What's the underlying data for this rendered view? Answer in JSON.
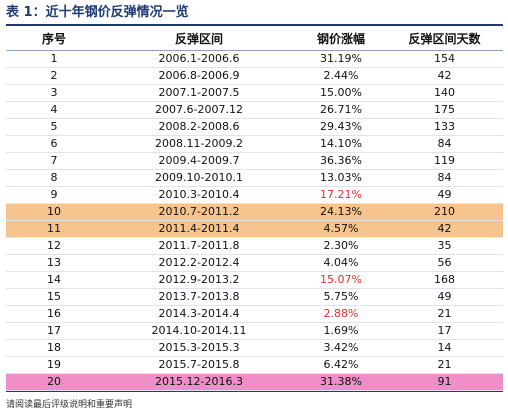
{
  "title": "表 1：近十年钢价反弹情况一览",
  "table": {
    "headers": [
      "序号",
      "反弹区间",
      "钢价涨幅",
      "反弹区间天数"
    ],
    "rows": [
      {
        "no": "1",
        "period": "2006.1-2006.6",
        "rise": "31.19%",
        "days": "154",
        "highlight": "",
        "rise_color": ""
      },
      {
        "no": "2",
        "period": "2006.8-2006.9",
        "rise": "2.44%",
        "days": "42",
        "highlight": "",
        "rise_color": ""
      },
      {
        "no": "3",
        "period": "2007.1-2007.5",
        "rise": "15.00%",
        "days": "140",
        "highlight": "",
        "rise_color": ""
      },
      {
        "no": "4",
        "period": "2007.6-2007.12",
        "rise": "26.71%",
        "days": "175",
        "highlight": "",
        "rise_color": ""
      },
      {
        "no": "5",
        "period": "2008.2-2008.6",
        "rise": "29.43%",
        "days": "133",
        "highlight": "",
        "rise_color": ""
      },
      {
        "no": "6",
        "period": "2008.11-2009.2",
        "rise": "14.10%",
        "days": "84",
        "highlight": "",
        "rise_color": ""
      },
      {
        "no": "7",
        "period": "2009.4-2009.7",
        "rise": "36.36%",
        "days": "119",
        "highlight": "",
        "rise_color": ""
      },
      {
        "no": "8",
        "period": "2009.10-2010.1",
        "rise": "13.03%",
        "days": "84",
        "highlight": "",
        "rise_color": ""
      },
      {
        "no": "9",
        "period": "2010.3-2010.4",
        "rise": "17.21%",
        "days": "49",
        "highlight": "",
        "rise_color": "red"
      },
      {
        "no": "10",
        "period": "2010.7-2011.2",
        "rise": "24.13%",
        "days": "210",
        "highlight": "orange",
        "rise_color": ""
      },
      {
        "no": "11",
        "period": "2011.4-2011.4",
        "rise": "4.57%",
        "days": "42",
        "highlight": "orange",
        "rise_color": ""
      },
      {
        "no": "12",
        "period": "2011.7-2011.8",
        "rise": "2.30%",
        "days": "35",
        "highlight": "",
        "rise_color": ""
      },
      {
        "no": "13",
        "period": "2012.2-2012.4",
        "rise": "4.04%",
        "days": "56",
        "highlight": "",
        "rise_color": ""
      },
      {
        "no": "14",
        "period": "2012.9-2013.2",
        "rise": "15.07%",
        "days": "168",
        "highlight": "",
        "rise_color": "red"
      },
      {
        "no": "15",
        "period": "2013.7-2013.8",
        "rise": "5.75%",
        "days": "49",
        "highlight": "",
        "rise_color": ""
      },
      {
        "no": "16",
        "period": "2014.3-2014.4",
        "rise": "2.88%",
        "days": "21",
        "highlight": "",
        "rise_color": "red"
      },
      {
        "no": "17",
        "period": "2014.10-2014.11",
        "rise": "1.69%",
        "days": "17",
        "highlight": "",
        "rise_color": ""
      },
      {
        "no": "18",
        "period": "2015.3-2015.3",
        "rise": "3.42%",
        "days": "14",
        "highlight": "",
        "rise_color": ""
      },
      {
        "no": "19",
        "period": "2015.7-2015.8",
        "rise": "6.42%",
        "days": "21",
        "highlight": "",
        "rise_color": ""
      },
      {
        "no": "20",
        "period": "2015.12-2016.3",
        "rise": "31.38%",
        "days": "91",
        "highlight": "pink",
        "rise_color": ""
      }
    ]
  },
  "footnote": "请阅读最后评级说明和重要声明",
  "colors": {
    "title": "#1f3b73",
    "highlight_orange": "#f6c58f",
    "highlight_pink": "#ef8fc9",
    "red_text": "#e0312b"
  }
}
